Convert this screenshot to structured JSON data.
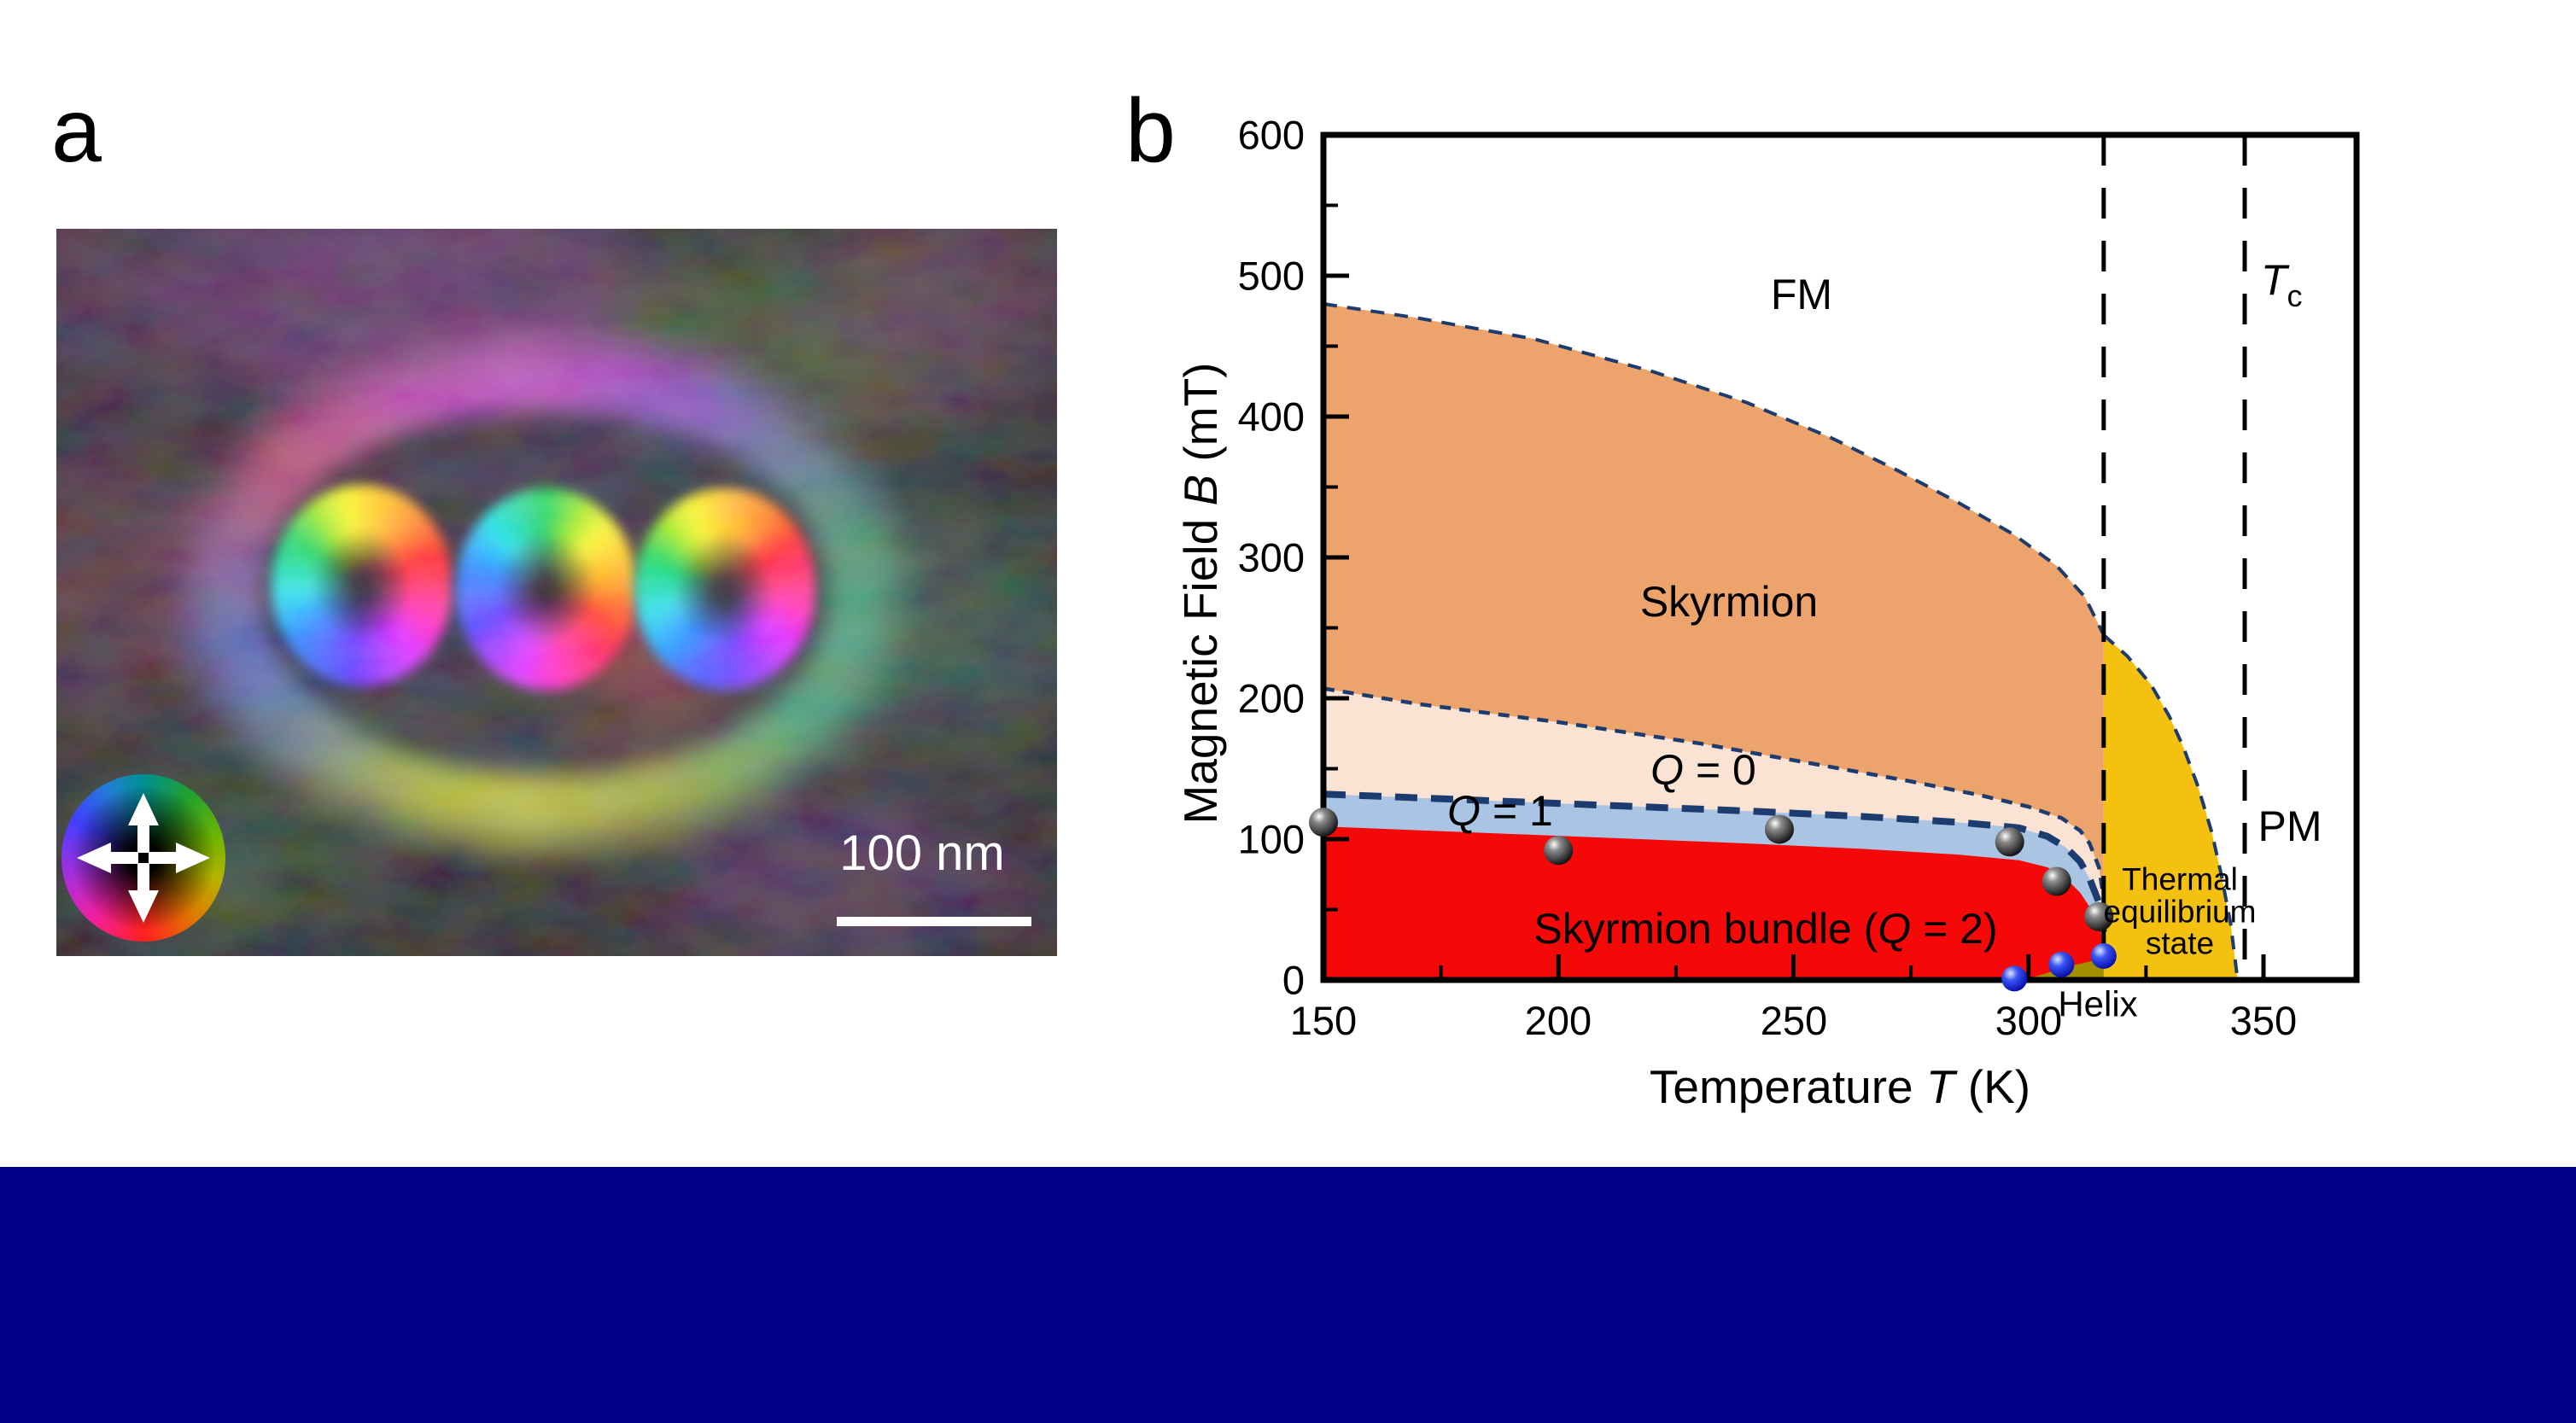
{
  "page": {
    "background": "#ffffff",
    "bottom_bar_color": "#00008B"
  },
  "panel_a": {
    "label": "a",
    "scale_bar_text": "100 nm",
    "color_wheel_arrows": [
      "up",
      "down",
      "left",
      "right"
    ]
  },
  "panel_b": {
    "label": "b",
    "axis": {
      "xlabel_pre": "Temperature ",
      "xlabel_var": "T",
      "xlabel_post": " (K)",
      "ylabel_pre": "Magnetic Field ",
      "ylabel_var": "B",
      "ylabel_post": " (mT)"
    },
    "x_ticks": [
      "150",
      "200",
      "250",
      "300",
      "350"
    ],
    "y_ticks": [
      "0",
      "100",
      "200",
      "300",
      "400",
      "500",
      "600"
    ],
    "labels": {
      "fm": "FM",
      "skyrmion": "Skyrmion",
      "q0_var": "Q",
      "q0_rest": " = 0",
      "q1_var": "Q",
      "q1_rest": " = 1",
      "bundle_pre": "Skyrmion bundle (",
      "bundle_var": "Q",
      "bundle_post": " = 2)",
      "thermal_line1": "Thermal",
      "thermal_line2": "equilibrium",
      "thermal_line3": "state",
      "pm": "PM",
      "tc_var": "T",
      "tc_sub": "c",
      "helix": "Helix"
    }
  },
  "chart_data": {
    "type": "area",
    "subtype": "magnetic phase diagram",
    "title": "",
    "xlabel": "Temperature T (K)",
    "ylabel": "Magnetic Field B (mT)",
    "xlim": [
      150,
      370
    ],
    "ylim": [
      0,
      600
    ],
    "x_ticks": [
      150,
      200,
      250,
      300,
      350
    ],
    "y_ticks": [
      0,
      100,
      200,
      300,
      400,
      500,
      600
    ],
    "grid": false,
    "boundary_color": "#1C3B6E",
    "regions": [
      {
        "name": "FM",
        "color": "#ffffff",
        "upper": null,
        "boundary": "none"
      },
      {
        "name": "Skyrmion",
        "color": "#EDA36C",
        "boundary": "dash-medium",
        "upper": [
          [
            150,
            480
          ],
          [
            170,
            470
          ],
          [
            195,
            455
          ],
          [
            220,
            432
          ],
          [
            240,
            410
          ],
          [
            258,
            385
          ],
          [
            272,
            362
          ],
          [
            285,
            339
          ],
          [
            297,
            316
          ],
          [
            306,
            294
          ],
          [
            312,
            272
          ],
          [
            316,
            245
          ]
        ]
      },
      {
        "name": "Q = 0",
        "color": "#FAE3D2",
        "boundary": "dash-thin",
        "upper": [
          [
            150,
            207
          ],
          [
            170,
            196
          ],
          [
            200,
            183
          ],
          [
            230,
            168
          ],
          [
            255,
            153
          ],
          [
            275,
            141
          ],
          [
            290,
            131
          ],
          [
            300,
            123
          ],
          [
            307,
            115
          ],
          [
            311,
            106
          ],
          [
            313,
            97
          ],
          [
            315,
            80
          ],
          [
            316,
            58
          ]
        ]
      },
      {
        "name": "Q = 1",
        "color": "#AAC5E4",
        "boundary": "dash-bold",
        "upper": [
          [
            150,
            132
          ],
          [
            180,
            128
          ],
          [
            210,
            124
          ],
          [
            240,
            120
          ],
          [
            265,
            116
          ],
          [
            285,
            112
          ],
          [
            298,
            108
          ],
          [
            304,
            102
          ],
          [
            308,
            94
          ],
          [
            311,
            84
          ],
          [
            313,
            72
          ],
          [
            315,
            55
          ],
          [
            316,
            34
          ]
        ]
      },
      {
        "name": "Skyrmion bundle (Q = 2)",
        "color": "#F50808",
        "boundary": "none",
        "upper": [
          [
            150,
            109
          ],
          [
            180,
            105
          ],
          [
            210,
            101
          ],
          [
            240,
            97
          ],
          [
            265,
            93
          ],
          [
            285,
            89
          ],
          [
            298,
            85
          ],
          [
            304,
            80
          ],
          [
            308,
            72
          ],
          [
            311,
            62
          ],
          [
            313,
            52
          ],
          [
            315,
            38
          ],
          [
            316.5,
            22
          ],
          [
            318,
            0
          ]
        ]
      },
      {
        "name": "Helix",
        "color": "#A38E00",
        "boundary": "none",
        "upper": [
          [
            299,
            0
          ],
          [
            304,
            5
          ],
          [
            309,
            10
          ],
          [
            313,
            13
          ],
          [
            317,
            16
          ]
        ]
      },
      {
        "name": "Thermal equilibrium state",
        "color": "#F5C110",
        "boundary": "dash-medium",
        "upper": [
          [
            316,
            245
          ],
          [
            321,
            230
          ],
          [
            326,
            210
          ],
          [
            330,
            187
          ],
          [
            333,
            165
          ],
          [
            336,
            138
          ],
          [
            339,
            105
          ],
          [
            341,
            75
          ],
          [
            343,
            40
          ],
          [
            344.5,
            0
          ]
        ]
      },
      {
        "name": "PM",
        "color": "#ffffff",
        "upper": null,
        "boundary": "none"
      }
    ],
    "vertical_dashed_lines_T": [
      316,
      346
    ],
    "tc_line_T": 346,
    "series": [
      {
        "name": "experimental points (black)",
        "marker": "sphere-black",
        "points_T_B": [
          [
            150,
            112
          ],
          [
            200,
            92
          ],
          [
            247,
            107
          ],
          [
            296,
            98
          ],
          [
            306,
            70
          ],
          [
            315,
            45
          ]
        ]
      },
      {
        "name": "experimental points (blue)",
        "marker": "sphere-blue",
        "points_T_B": [
          [
            297,
            1
          ],
          [
            307,
            11
          ],
          [
            316,
            17
          ]
        ]
      }
    ]
  }
}
